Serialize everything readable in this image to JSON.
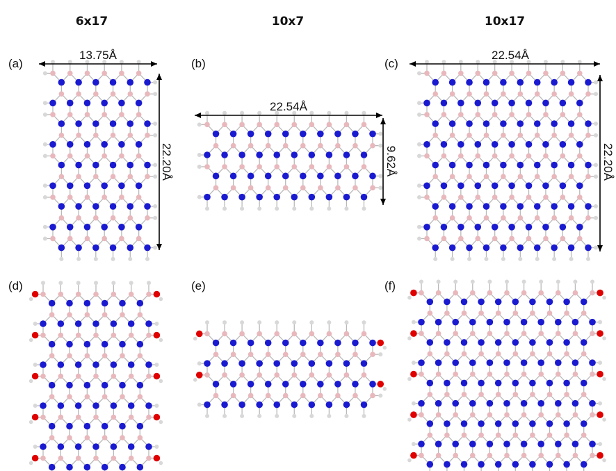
{
  "columns": [
    {
      "title": "6x17"
    },
    {
      "title": "10x7"
    },
    {
      "title": "10x17"
    }
  ],
  "panels": [
    {
      "label": "(a)",
      "dims": {
        "width": "13.75Å",
        "height": "22.20Å"
      }
    },
    {
      "label": "(b)",
      "dims": {
        "width": "22.54Å",
        "height": "9.62Å"
      }
    },
    {
      "label": "(c)",
      "dims": {
        "width": "22.54Å",
        "height": "22.20Å"
      }
    },
    {
      "label": "(d)"
    },
    {
      "label": "(e)"
    },
    {
      "label": "(f)"
    }
  ],
  "atom_colors": {
    "boron": "#e8b8bc",
    "nitrogen": "#1a1ad0",
    "hydrogen": "#d8d8d8",
    "oxygen": "#e00000"
  },
  "bond_color": "#b9b9b9"
}
